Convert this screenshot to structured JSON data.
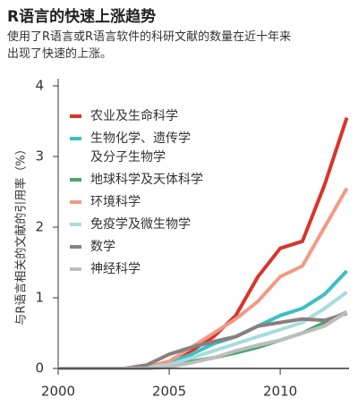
{
  "chart_data": {
    "type": "line",
    "title": "R语言的快速上涨趋势",
    "subtitle": "使用了R语言或R语言软件的科研文献的数量在近十年来\n出现了快速的上涨。",
    "y_label": "与R语言相关的文献的引用率（%）",
    "x": [
      2000,
      2001,
      2002,
      2003,
      2004,
      2005,
      2006,
      2007,
      2008,
      2009,
      2010,
      2011,
      2012,
      2013
    ],
    "xlim": [
      2000,
      2013.1
    ],
    "xticks": [
      2000,
      2005,
      2010
    ],
    "ylim": [
      0,
      4
    ],
    "yticks": [
      0,
      1,
      2,
      3,
      4
    ],
    "grid": false,
    "legend": "upper left",
    "series": [
      {
        "name": "农业及生命科学",
        "color": "#d9342b",
        "values": [
          0,
          0,
          0,
          0,
          0.02,
          0.1,
          0.25,
          0.45,
          0.75,
          1.3,
          1.7,
          1.8,
          2.6,
          3.55
        ]
      },
      {
        "name": "生物化学、遗传学\n及分子生物学",
        "color": "#3bbfc4",
        "values": [
          0,
          0,
          0,
          0,
          0.01,
          0.08,
          0.2,
          0.35,
          0.45,
          0.6,
          0.75,
          0.85,
          1.05,
          1.38
        ]
      },
      {
        "name": "地球科学及天体科学",
        "color": "#4aa66a",
        "values": [
          0,
          0,
          0,
          0,
          0,
          0.03,
          0.1,
          0.15,
          0.22,
          0.3,
          0.4,
          0.5,
          0.65,
          0.8
        ]
      },
      {
        "name": "环境科学",
        "color": "#f29a86",
        "values": [
          0,
          0,
          0,
          0,
          0.02,
          0.1,
          0.3,
          0.5,
          0.7,
          0.95,
          1.3,
          1.45,
          2.0,
          2.55
        ]
      },
      {
        "name": "免疫学及微生物学",
        "color": "#a8dcdc",
        "values": [
          0,
          0,
          0,
          0,
          0.01,
          0.05,
          0.15,
          0.25,
          0.35,
          0.45,
          0.55,
          0.65,
          0.85,
          1.08
        ]
      },
      {
        "name": "数学",
        "color": "#8a7f7f",
        "values": [
          0,
          0,
          0,
          0,
          0.05,
          0.2,
          0.3,
          0.38,
          0.45,
          0.6,
          0.65,
          0.7,
          0.68,
          0.78
        ]
      },
      {
        "name": "神经科学",
        "color": "#bdbdbd",
        "values": [
          0,
          0,
          0,
          0,
          0,
          0.02,
          0.08,
          0.15,
          0.25,
          0.33,
          0.4,
          0.5,
          0.6,
          0.8
        ]
      }
    ]
  }
}
